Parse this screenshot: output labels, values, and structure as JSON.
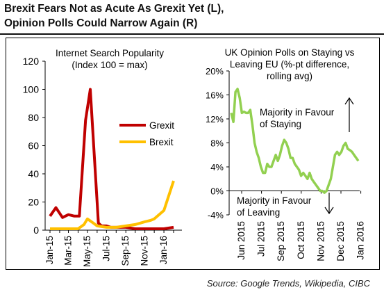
{
  "header": {
    "title_line1": "Brexit Fears Not as Acute As Grexit Yet (L),",
    "title_line2": "Opinion Polls Could Narrow Again (R)"
  },
  "footer": {
    "source": "Source: Google Trends, Wikipedia, CIBC"
  },
  "chart_data": [
    {
      "type": "line",
      "title_line1": "Internet Search Popularity",
      "title_line2": "(Index 100 = max)",
      "ylim": [
        0,
        120
      ],
      "yticks": [
        0,
        20,
        40,
        60,
        80,
        100,
        120
      ],
      "x_tick_labels": [
        "Jan-15",
        "Mar-15",
        "May-15",
        "Jul-15",
        "Sep-15",
        "Nov-15",
        "Jan-16"
      ],
      "x_months": [
        "2015-01",
        "2015-02",
        "2015-03",
        "2015-04",
        "2015-05",
        "2015-06",
        "2015-07",
        "2015-08",
        "2015-09",
        "2015-10",
        "2015-11",
        "2015-12",
        "2016-01",
        "2016-02"
      ],
      "series": [
        {
          "name": "Grexit",
          "color": "#c00000",
          "x": [
            "2015-01",
            "2015-01-20",
            "2015-02-10",
            "2015-03",
            "2015-03-20",
            "2015-04-05",
            "2015-04-25",
            "2015-05-10",
            "2015-06-05",
            "2015-06-15",
            "2015-07",
            "2015-07-15",
            "2015-08",
            "2015-09",
            "2015-10",
            "2015-11",
            "2015-12",
            "2016-01",
            "2016-02"
          ],
          "values": [
            10,
            16,
            9,
            11,
            10,
            10,
            78,
            100,
            5,
            3,
            3,
            2,
            2,
            2,
            1,
            1,
            1,
            1,
            2
          ]
        },
        {
          "name": "Brexit",
          "color": "#ffc000",
          "x": [
            "2015-01",
            "2015-02",
            "2015-03",
            "2015-04",
            "2015-04-20",
            "2015-05",
            "2015-05-20",
            "2015-06",
            "2015-07",
            "2015-08",
            "2015-09",
            "2015-10",
            "2015-11",
            "2015-11-20",
            "2015-12",
            "2016-01",
            "2016-02"
          ],
          "values": [
            1,
            1,
            1,
            1,
            4,
            8,
            5,
            3,
            2,
            2,
            3,
            4,
            6,
            7,
            8,
            14,
            35
          ]
        }
      ]
    },
    {
      "type": "line",
      "title_line1": "UK Opinion Polls on Staying vs",
      "title_line2": "Leaving EU (%-pt difference,",
      "title_line3": "rolling avg)",
      "ylim": [
        -4,
        20
      ],
      "yticks": [
        "-4%",
        "0%",
        "4%",
        "8%",
        "12%",
        "16%",
        "20%"
      ],
      "x_tick_labels": [
        "Jun 2015",
        "Jul 2015",
        "Sep 2015",
        "Oct 2015",
        "Nov 2015",
        "Dec 2015",
        "Jan 2016"
      ],
      "annotations": {
        "staying_line1": "Majority in Favour",
        "staying_line2": "of Staying",
        "leaving_line1": "Majority in Favour",
        "leaving_line2": "of Leaving"
      },
      "series": [
        {
          "name": "",
          "color": "#92d050",
          "values": [
            13,
            11.5,
            16.5,
            17,
            15.5,
            13,
            13.2,
            13,
            13,
            13.5,
            11,
            8,
            6.5,
            5.5,
            4,
            3,
            3,
            4.5,
            4,
            4,
            5,
            6,
            5,
            6,
            7.5,
            8.5,
            8,
            7,
            5.5,
            5.5,
            4.5,
            4,
            3.5,
            2.5,
            3,
            2.5,
            2,
            3,
            2,
            1.5,
            1,
            0.5,
            0,
            0,
            -0.3,
            0,
            1,
            2,
            4,
            6,
            6.5,
            6,
            6.5,
            7.5,
            8,
            7,
            6.8,
            6.5,
            6,
            5.5,
            5
          ]
        }
      ]
    }
  ]
}
